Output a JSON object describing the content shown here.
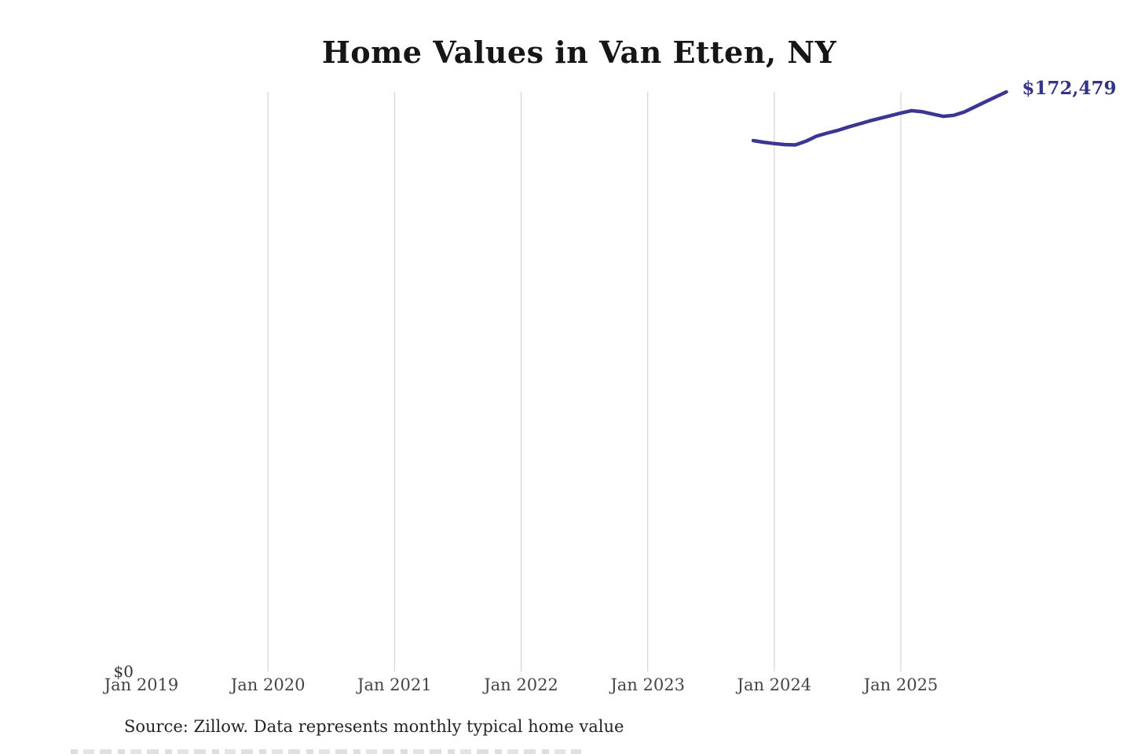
{
  "chart": {
    "title": "Home Values in Van Etten, NY",
    "source_note": "Source: Zillow. Data represents monthly typical home value",
    "colors": {
      "accent": "#3b3691",
      "end_label": "#333387",
      "gridline": "#cccccc",
      "axis_label": "#454545",
      "title": "#161616"
    }
  },
  "chart_data": {
    "type": "line",
    "title": "Home Values in Van Etten, NY",
    "xlabel": "",
    "ylabel": "",
    "grid": "vertical-only",
    "legend": "none",
    "x_tick_labels": [
      "Jan 2019",
      "Jan 2020",
      "Jan 2021",
      "Jan 2022",
      "Jan 2023",
      "Jan 2024",
      "Jan 2025"
    ],
    "y_axis": {
      "min": 0,
      "max": 172479,
      "zero_label": "$0"
    },
    "latest_value": 172479,
    "latest_value_label": "$172,479",
    "series": [
      {
        "name": "Monthly typical home value",
        "x": [
          "Nov 2023",
          "Dec 2023",
          "Jan 2024",
          "Feb 2024",
          "Mar 2024",
          "Apr 2024",
          "May 2024",
          "Jun 2024",
          "Jul 2024",
          "Aug 2024",
          "Sep 2024",
          "Oct 2024",
          "Nov 2024",
          "Dec 2024",
          "Jan 2025",
          "Feb 2025",
          "Mar 2025",
          "Apr 2025",
          "May 2025",
          "Jun 2025",
          "Jul 2025",
          "Aug 2025",
          "Sep 2025",
          "Oct 2025",
          "Nov 2025"
        ],
        "values": [
          158000,
          157500,
          157100,
          156800,
          156700,
          157800,
          159300,
          160200,
          161000,
          162000,
          162900,
          163800,
          164600,
          165400,
          166200,
          166900,
          166600,
          165900,
          165200,
          165500,
          166500,
          168000,
          169500,
          171000,
          172479
        ]
      }
    ]
  }
}
